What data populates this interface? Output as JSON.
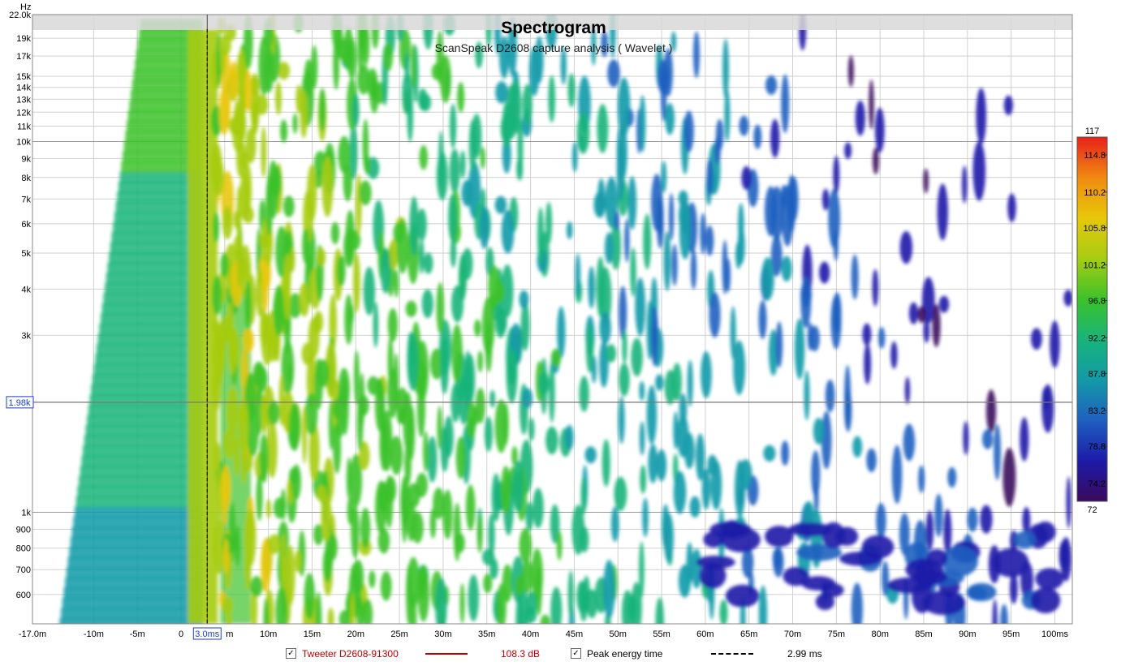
{
  "chart_data": {
    "type": "heatmap",
    "title": "Spectrogram",
    "subtitle": "ScanSpeak D2608 capture analysis ( Wavelet )",
    "ylabel": "Hz",
    "xlim_ms": [
      -17,
      102
    ],
    "ylim_hz": [
      500,
      22000
    ],
    "y_scale": "log",
    "x_ticks": [
      {
        "v": -17,
        "label": "-17.0m"
      },
      {
        "v": -10,
        "label": "-10m"
      },
      {
        "v": -5,
        "label": "-5m"
      },
      {
        "v": 0,
        "label": "0"
      },
      {
        "v": 5,
        "label": "5m"
      },
      {
        "v": 10,
        "label": "10m"
      },
      {
        "v": 15,
        "label": "15m"
      },
      {
        "v": 20,
        "label": "20m"
      },
      {
        "v": 25,
        "label": "25m"
      },
      {
        "v": 30,
        "label": "30m"
      },
      {
        "v": 35,
        "label": "35m"
      },
      {
        "v": 40,
        "label": "40m"
      },
      {
        "v": 45,
        "label": "45m"
      },
      {
        "v": 50,
        "label": "50m"
      },
      {
        "v": 55,
        "label": "55m"
      },
      {
        "v": 60,
        "label": "60m"
      },
      {
        "v": 65,
        "label": "65m"
      },
      {
        "v": 70,
        "label": "70m"
      },
      {
        "v": 75,
        "label": "75m"
      },
      {
        "v": 80,
        "label": "80m"
      },
      {
        "v": 85,
        "label": "85m"
      },
      {
        "v": 90,
        "label": "90m"
      },
      {
        "v": 95,
        "label": "95m"
      },
      {
        "v": 100,
        "label": "100ms"
      }
    ],
    "y_ticks": [
      {
        "v": 22000,
        "label": "22.0k"
      },
      {
        "v": 19000,
        "label": "19k"
      },
      {
        "v": 17000,
        "label": "17k"
      },
      {
        "v": 15000,
        "label": "15k"
      },
      {
        "v": 14000,
        "label": "14k"
      },
      {
        "v": 13000,
        "label": "13k"
      },
      {
        "v": 12000,
        "label": "12k"
      },
      {
        "v": 11000,
        "label": "11k"
      },
      {
        "v": 10000,
        "label": "10k"
      },
      {
        "v": 9000,
        "label": "9k"
      },
      {
        "v": 8000,
        "label": "8k"
      },
      {
        "v": 7000,
        "label": "7k"
      },
      {
        "v": 6000,
        "label": "6k"
      },
      {
        "v": 5000,
        "label": "5k"
      },
      {
        "v": 4000,
        "label": "4k"
      },
      {
        "v": 3000,
        "label": "3k"
      },
      {
        "v": 1000,
        "label": "1k"
      },
      {
        "v": 900,
        "label": "900"
      },
      {
        "v": 800,
        "label": "800"
      },
      {
        "v": 700,
        "label": "700"
      },
      {
        "v": 600,
        "label": "600"
      }
    ],
    "cursor": {
      "x_ms": 3.0,
      "x_label": "3.0ms",
      "y_hz": 1980,
      "y_label": "1.98k"
    },
    "colorbar": {
      "min": 72,
      "max": 117,
      "min_label": "72",
      "max_label": "117",
      "ticks": [
        "114.8",
        "110.2",
        "105.8",
        "101.2",
        "96.8",
        "92.2",
        "87.8",
        "83.2",
        "78.8",
        "74.2"
      ],
      "colors": [
        "#3a0a5c",
        "#1d1ba8",
        "#1f5fc0",
        "#139aa8",
        "#17b47a",
        "#3cc22a",
        "#a6cc12",
        "#e8c80a",
        "#f08a10",
        "#e8201a"
      ]
    },
    "series": [
      {
        "name": "Tweeter D2608-91300",
        "value": "108.3 dB",
        "color": "#c00000",
        "checked": true
      },
      {
        "name": "Peak energy time",
        "value": "2.99 ms",
        "color": "#000000",
        "checked": true
      }
    ]
  }
}
